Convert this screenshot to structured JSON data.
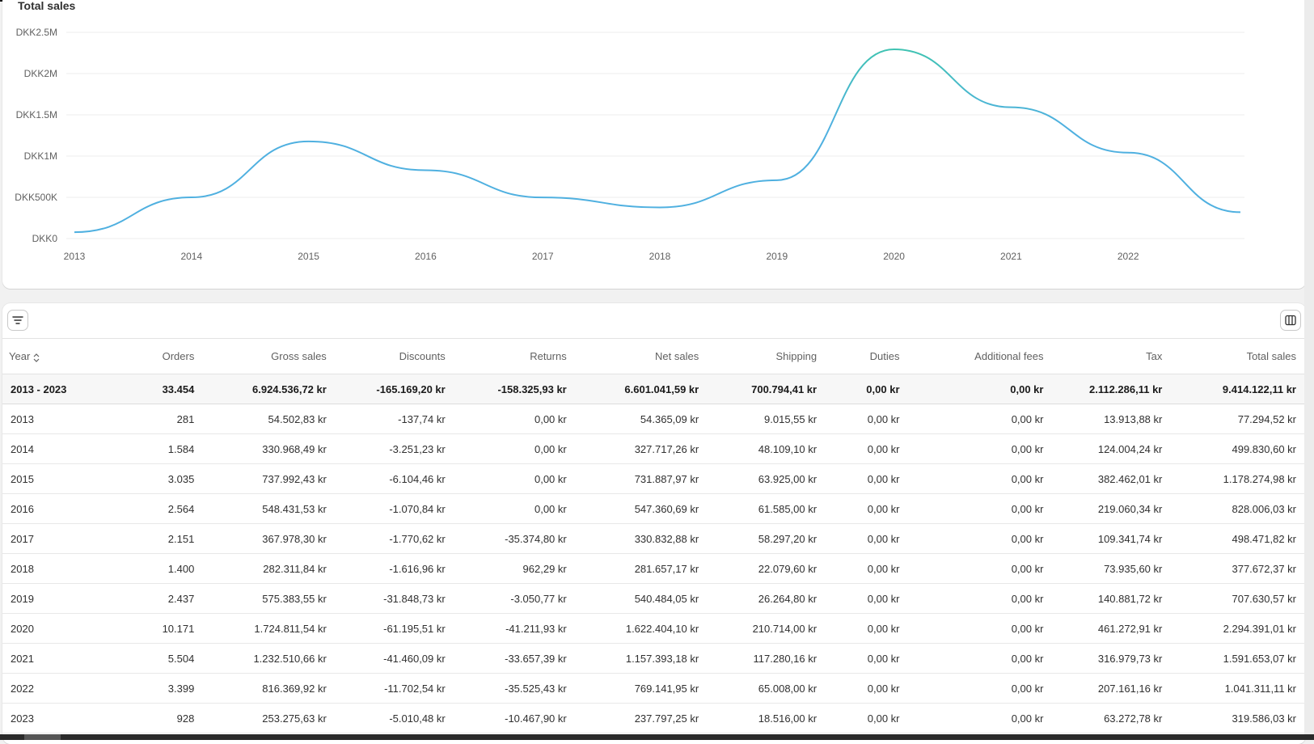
{
  "chart_data": {
    "type": "line",
    "title": "Total sales",
    "x_tick_labels": [
      "2013",
      "2014",
      "2015",
      "2016",
      "2017",
      "2018",
      "2019",
      "2020",
      "2021",
      "2022"
    ],
    "y_tick_labels": [
      "DKK0",
      "DKK500K",
      "DKK1M",
      "DKK1.5M",
      "DKK2M",
      "DKK2.5M"
    ],
    "ylim": [
      0,
      2500000
    ],
    "x": [
      "2013",
      "2014",
      "2015",
      "2016",
      "2017",
      "2018",
      "2019",
      "2020",
      "2021",
      "2022",
      "2023"
    ],
    "series": [
      {
        "values": [
          77294.52,
          499830.6,
          1178274.98,
          828006.03,
          498471.82,
          377672.37,
          707630.57,
          2294391.01,
          1591653.07,
          1041311.11,
          319586.03
        ]
      }
    ],
    "grid": true,
    "line_color": "#4fb0e0",
    "highlight_color": "#3cc7a8"
  },
  "table": {
    "columns": [
      "Year",
      "Orders",
      "Gross sales",
      "Discounts",
      "Returns",
      "Net sales",
      "Shipping",
      "Duties",
      "Additional fees",
      "Tax",
      "Total sales"
    ],
    "total_row": [
      "2013 - 2023",
      "33.454",
      "6.924.536,72 kr",
      "-165.169,20 kr",
      "-158.325,93 kr",
      "6.601.041,59 kr",
      "700.794,41 kr",
      "0,00 kr",
      "0,00 kr",
      "2.112.286,11 kr",
      "9.414.122,11 kr"
    ],
    "rows": [
      [
        "2013",
        "281",
        "54.502,83 kr",
        "-137,74 kr",
        "0,00 kr",
        "54.365,09 kr",
        "9.015,55 kr",
        "0,00 kr",
        "0,00 kr",
        "13.913,88 kr",
        "77.294,52 kr"
      ],
      [
        "2014",
        "1.584",
        "330.968,49 kr",
        "-3.251,23 kr",
        "0,00 kr",
        "327.717,26 kr",
        "48.109,10 kr",
        "0,00 kr",
        "0,00 kr",
        "124.004,24 kr",
        "499.830,60 kr"
      ],
      [
        "2015",
        "3.035",
        "737.992,43 kr",
        "-6.104,46 kr",
        "0,00 kr",
        "731.887,97 kr",
        "63.925,00 kr",
        "0,00 kr",
        "0,00 kr",
        "382.462,01 kr",
        "1.178.274,98 kr"
      ],
      [
        "2016",
        "2.564",
        "548.431,53 kr",
        "-1.070,84 kr",
        "0,00 kr",
        "547.360,69 kr",
        "61.585,00 kr",
        "0,00 kr",
        "0,00 kr",
        "219.060,34 kr",
        "828.006,03 kr"
      ],
      [
        "2017",
        "2.151",
        "367.978,30 kr",
        "-1.770,62 kr",
        "-35.374,80 kr",
        "330.832,88 kr",
        "58.297,20 kr",
        "0,00 kr",
        "0,00 kr",
        "109.341,74 kr",
        "498.471,82 kr"
      ],
      [
        "2018",
        "1.400",
        "282.311,84 kr",
        "-1.616,96 kr",
        "962,29 kr",
        "281.657,17 kr",
        "22.079,60 kr",
        "0,00 kr",
        "0,00 kr",
        "73.935,60 kr",
        "377.672,37 kr"
      ],
      [
        "2019",
        "2.437",
        "575.383,55 kr",
        "-31.848,73 kr",
        "-3.050,77 kr",
        "540.484,05 kr",
        "26.264,80 kr",
        "0,00 kr",
        "0,00 kr",
        "140.881,72 kr",
        "707.630,57 kr"
      ],
      [
        "2020",
        "10.171",
        "1.724.811,54 kr",
        "-61.195,51 kr",
        "-41.211,93 kr",
        "1.622.404,10 kr",
        "210.714,00 kr",
        "0,00 kr",
        "0,00 kr",
        "461.272,91 kr",
        "2.294.391,01 kr"
      ],
      [
        "2021",
        "5.504",
        "1.232.510,66 kr",
        "-41.460,09 kr",
        "-33.657,39 kr",
        "1.157.393,18 kr",
        "117.280,16 kr",
        "0,00 kr",
        "0,00 kr",
        "316.979,73 kr",
        "1.591.653,07 kr"
      ],
      [
        "2022",
        "3.399",
        "816.369,92 kr",
        "-11.702,54 kr",
        "-35.525,43 kr",
        "769.141,95 kr",
        "65.008,00 kr",
        "0,00 kr",
        "0,00 kr",
        "207.161,16 kr",
        "1.041.311,11 kr"
      ],
      [
        "2023",
        "928",
        "253.275,63 kr",
        "-5.010,48 kr",
        "-10.467,90 kr",
        "237.797,25 kr",
        "18.516,00 kr",
        "0,00 kr",
        "0,00 kr",
        "63.272,78 kr",
        "319.586,03 kr"
      ]
    ]
  },
  "icons": {
    "filter": "filter-icon",
    "columns": "columns-icon",
    "sort": "sort-icon"
  }
}
